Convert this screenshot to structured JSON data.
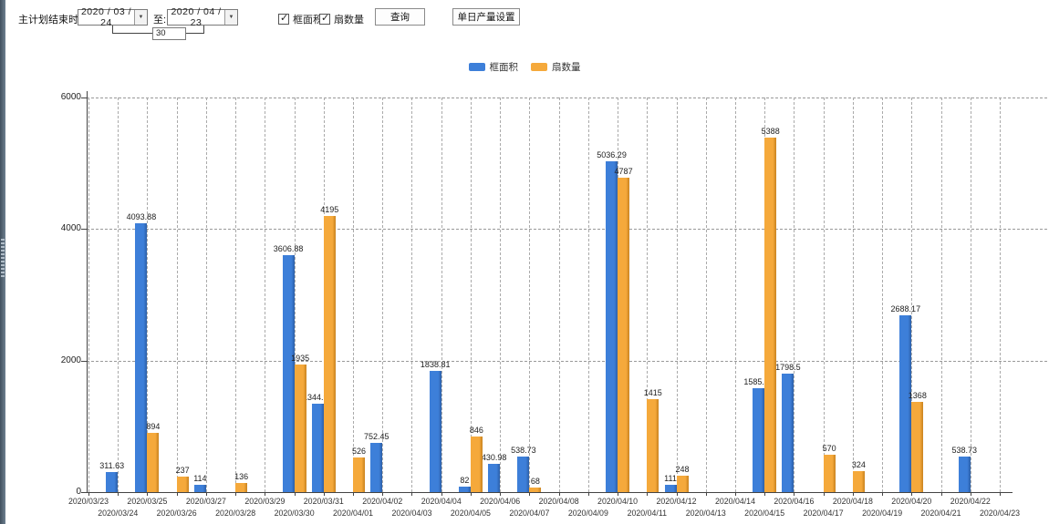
{
  "toolbar": {
    "label_end_time": "主计划结束时间:",
    "date_from": "2020 / 03 / 24",
    "label_to": "至:",
    "date_to": "2020 / 04 / 23",
    "interval_days": "30",
    "checkbox_frame_area": "框面积",
    "checkbox_fan_count": "扇数量",
    "query_button": "查询",
    "daily_output_button": "单日产量设置",
    "dropdown_arrow": "▼"
  },
  "legend": {
    "series1": "框面积",
    "series2": "扇数量"
  },
  "colors": {
    "blue": "#3d7fd9",
    "blue_dark": "#2c5fa8",
    "orange": "#f5a93b",
    "orange_dark": "#c9831f",
    "grid": "#999999",
    "axis": "#444444"
  },
  "chart_data": {
    "type": "bar",
    "title": "",
    "xlabel": "",
    "ylabel": "",
    "ylim": [
      0,
      6000
    ],
    "yticks": [
      0,
      2000,
      4000,
      6000
    ],
    "grid": true,
    "legend_position": "top",
    "categories": [
      "2020/03/23",
      "2020/03/24",
      "2020/03/25",
      "2020/03/26",
      "2020/03/27",
      "2020/03/28",
      "2020/03/29",
      "2020/03/30",
      "2020/03/31",
      "2020/04/01",
      "2020/04/02",
      "2020/04/03",
      "2020/04/04",
      "2020/04/05",
      "2020/04/06",
      "2020/04/07",
      "2020/04/08",
      "2020/04/09",
      "2020/04/10",
      "2020/04/11",
      "2020/04/12",
      "2020/04/13",
      "2020/04/14",
      "2020/04/15",
      "2020/04/16",
      "2020/04/17",
      "2020/04/18",
      "2020/04/19",
      "2020/04/20",
      "2020/04/21",
      "2020/04/22",
      "2020/04/23"
    ],
    "series": [
      {
        "name": "框面积",
        "color": "#3d7fd9",
        "values": [
          null,
          311.63,
          4093.88,
          null,
          114,
          null,
          null,
          3606.88,
          1344.95,
          null,
          752.45,
          null,
          1838.81,
          82,
          430.98,
          538.73,
          null,
          null,
          5036.29,
          null,
          111,
          null,
          null,
          1585.96,
          1798.5,
          null,
          null,
          null,
          2688.17,
          null,
          538.73,
          null
        ]
      },
      {
        "name": "扇数量",
        "color": "#f5a93b",
        "values": [
          null,
          null,
          894,
          237,
          null,
          136,
          null,
          1935,
          4195,
          526,
          null,
          null,
          null,
          846,
          null,
          68,
          null,
          null,
          4787,
          1415,
          248,
          null,
          null,
          5388,
          null,
          570,
          324,
          null,
          1368,
          null,
          null,
          null
        ]
      }
    ]
  }
}
